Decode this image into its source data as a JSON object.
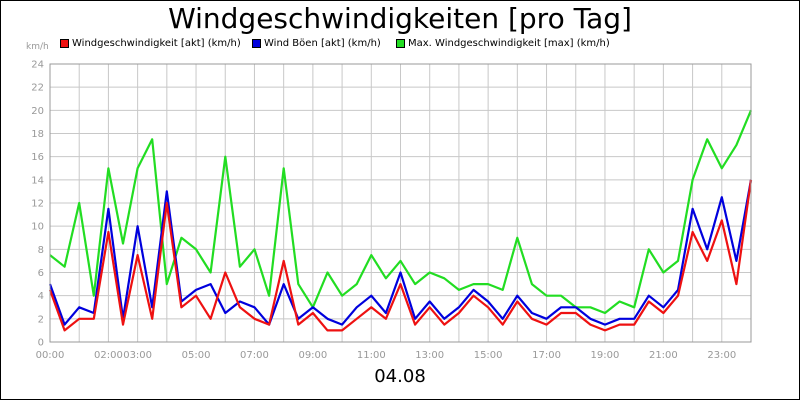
{
  "chart_data": {
    "type": "line",
    "title": "Windgeschwindigkeiten [pro Tag]",
    "ylabel": "km/h",
    "xlabel": "04.08",
    "ylim": [
      0,
      24
    ],
    "yticks": [
      "0",
      "2",
      "4",
      "6",
      "8",
      "10",
      "12",
      "14",
      "16",
      "18",
      "20",
      "22",
      "24"
    ],
    "grid": true,
    "legend_position": "top",
    "x_ticks": [
      {
        "label": "00:00",
        "hour": 0
      },
      {
        "label": "02:00",
        "hour": 2
      },
      {
        "label": "03:00",
        "hour": 3
      },
      {
        "label": "05:00",
        "hour": 5
      },
      {
        "label": "07:00",
        "hour": 7
      },
      {
        "label": "09:00",
        "hour": 9
      },
      {
        "label": "11:00",
        "hour": 11
      },
      {
        "label": "13:00",
        "hour": 13
      },
      {
        "label": "15:00",
        "hour": 15
      },
      {
        "label": "17:00",
        "hour": 17
      },
      {
        "label": "19:00",
        "hour": 19
      },
      {
        "label": "21:00",
        "hour": 21
      },
      {
        "label": "23:00",
        "hour": 23
      }
    ],
    "x_hours": [
      0,
      0.5,
      1,
      1.5,
      2,
      2.5,
      3,
      3.5,
      4,
      4.5,
      5,
      5.5,
      6,
      6.5,
      7,
      7.5,
      8,
      8.5,
      9,
      9.5,
      10,
      10.5,
      11,
      11.5,
      12,
      12.5,
      13,
      13.5,
      14,
      14.5,
      15,
      15.5,
      16,
      16.5,
      17,
      17.5,
      18,
      18.5,
      19,
      19.5,
      20,
      20.5,
      21,
      21.5,
      22,
      22.5,
      23,
      23.5,
      24
    ],
    "series": [
      {
        "name": "Max. Windgeschwindigkeit [max] (km/h)",
        "color": "#22dd22",
        "values": [
          7.5,
          6.5,
          12,
          4,
          15,
          8.5,
          15,
          17.5,
          5,
          9,
          8,
          6,
          16,
          6.5,
          8,
          4,
          15,
          5,
          3,
          6,
          4,
          5,
          7.5,
          5.5,
          7,
          5,
          6,
          5.5,
          4.5,
          5,
          5,
          4.5,
          9,
          5,
          4,
          4,
          3,
          3,
          2.5,
          3.5,
          3,
          8,
          6,
          7,
          14,
          17.5,
          15,
          17,
          20
        ]
      },
      {
        "name": "Wind Böen [akt] (km/h)",
        "color": "#0000dd",
        "values": [
          5,
          1.5,
          3,
          2.5,
          11.5,
          2,
          10,
          3,
          13,
          3.5,
          4.5,
          5,
          2.5,
          3.5,
          3,
          1.5,
          5,
          2,
          3,
          2,
          1.5,
          3,
          4,
          2.5,
          6,
          2,
          3.5,
          2,
          3,
          4.5,
          3.5,
          2,
          4,
          2.5,
          2,
          3,
          3,
          2,
          1.5,
          2,
          2,
          4,
          3,
          4.5,
          11.5,
          8,
          12.5,
          7,
          14
        ]
      },
      {
        "name": "Windgeschwindigkeit [akt] (km/h)",
        "color": "#ee1111",
        "values": [
          4.5,
          1,
          2,
          2,
          9.5,
          1.5,
          7.5,
          2,
          12,
          3,
          4,
          2,
          6,
          3,
          2,
          1.5,
          7,
          1.5,
          2.5,
          1,
          1,
          2,
          3,
          2,
          5,
          1.5,
          3,
          1.5,
          2.5,
          4,
          3,
          1.5,
          3.5,
          2,
          1.5,
          2.5,
          2.5,
          1.5,
          1,
          1.5,
          1.5,
          3.5,
          2.5,
          4,
          9.5,
          7,
          10.5,
          5,
          14
        ]
      }
    ]
  }
}
